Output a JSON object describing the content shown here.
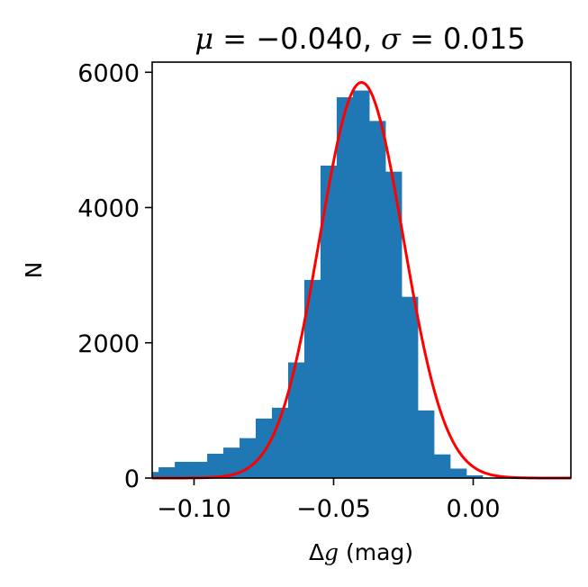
{
  "chart_data": {
    "type": "bar",
    "title": {
      "mu_symbol": "μ",
      "sigma_symbol": "σ",
      "mu_text": " = −0.040, ",
      "sigma_text": " = 0.015"
    },
    "mu": -0.04,
    "sigma": 0.015,
    "xlabel": {
      "delta": "Δ",
      "var": "g",
      "unit": " (mag)"
    },
    "ylabel": "N",
    "xlim": [
      -0.115,
      0.035
    ],
    "ylim": [
      0,
      6150
    ],
    "xticks": [
      {
        "value": -0.1,
        "label": "−0.10"
      },
      {
        "value": -0.05,
        "label": "−0.05"
      },
      {
        "value": 0.0,
        "label": "0.00"
      }
    ],
    "yticks": [
      {
        "value": 0,
        "label": "0"
      },
      {
        "value": 2000,
        "label": "2000"
      },
      {
        "value": 4000,
        "label": "4000"
      },
      {
        "value": 6000,
        "label": "6000"
      }
    ],
    "bin_edges": [
      -0.1185,
      -0.1127,
      -0.1069,
      -0.1011,
      -0.0953,
      -0.0895,
      -0.0837,
      -0.0779,
      -0.0721,
      -0.0663,
      -0.0605,
      -0.0547,
      -0.0489,
      -0.0431,
      -0.0373,
      -0.0315,
      -0.0257,
      -0.0199,
      -0.0141,
      -0.0083,
      -0.0025,
      0.0033
    ],
    "counts": [
      90,
      160,
      240,
      240,
      360,
      450,
      590,
      880,
      1040,
      1710,
      2930,
      4620,
      5630,
      5730,
      5280,
      4530,
      2680,
      1000,
      350,
      140,
      40
    ],
    "bar_color": "#1f77b4",
    "fit_color": "#ff0000",
    "fit_peak": 5850,
    "fit_type": "gaussian"
  }
}
